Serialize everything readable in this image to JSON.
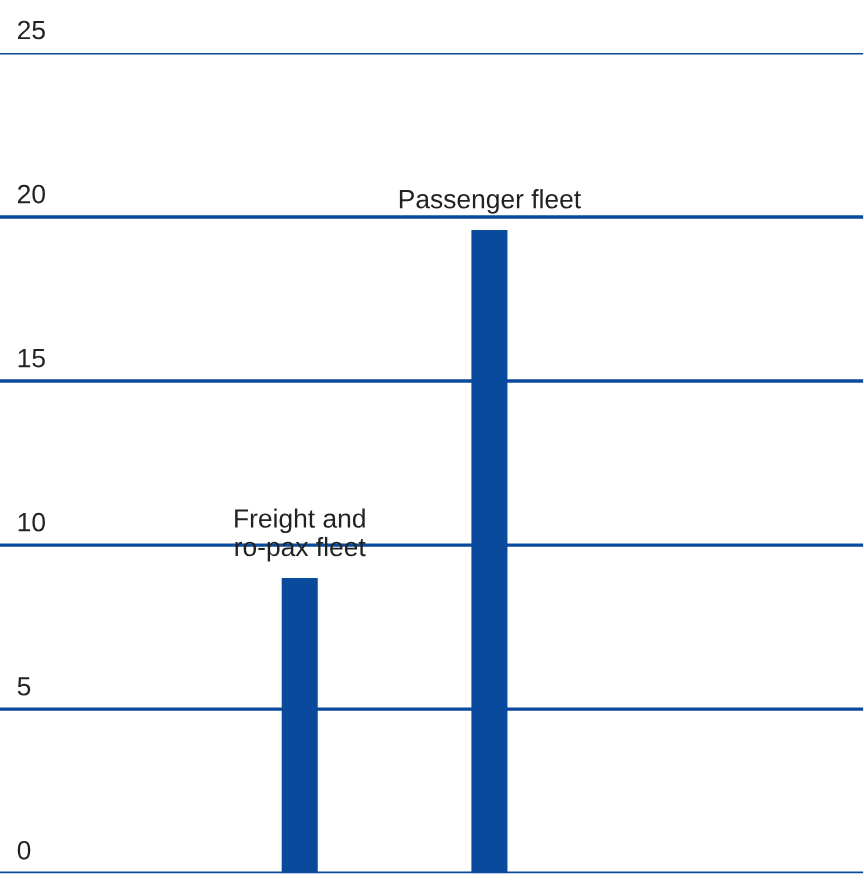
{
  "chart_data": {
    "type": "bar",
    "categories": [
      "Freight and\nro-pax fleet",
      "Passenger fleet"
    ],
    "values": [
      9.0,
      19.6
    ],
    "color": "#0a4a9c",
    "ylim": [
      0,
      25
    ],
    "yticks": [
      0,
      5,
      10,
      15,
      20,
      25
    ],
    "grid": "y"
  }
}
